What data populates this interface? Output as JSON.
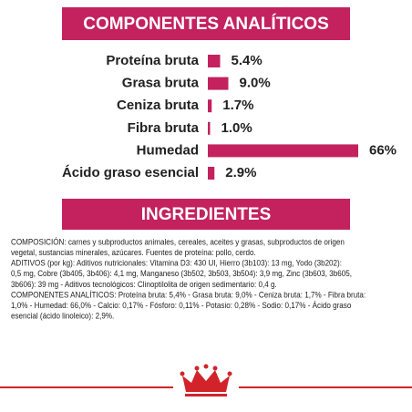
{
  "chart_data": {
    "type": "bar",
    "orientation": "horizontal",
    "title": "COMPONENTES ANALÍTICOS",
    "categories": [
      "Proteína bruta",
      "Grasa bruta",
      "Ceniza bruta",
      "Fibra bruta",
      "Humedad",
      "Ácido graso esencial"
    ],
    "values": [
      5.4,
      9.0,
      1.7,
      1.0,
      66,
      2.9
    ],
    "value_labels": [
      "5.4%",
      "9.0%",
      "1.7%",
      "1.0%",
      "66%",
      "2.9%"
    ],
    "color": "#c3225e"
  },
  "ingredients": {
    "title": "INGREDIENTES",
    "lines": [
      "COMPOSICIÓN: carnes y subproductos animales, cereales, aceites y grasas, subproductos de origen",
      "vegetal, sustancias minerales, azúcares. Fuentes de proteína: pollo, cerdo.",
      "ADITIVOS (por kg): Aditivos nutricionales: Vitamina D3: 430 UI, Hierro (3b103): 13 mg, Yodo (3b202):",
      "0,5 mg, Cobre (3b405, 3b406): 4,1 mg, Manganeso (3b502, 3b503, 3b504): 3,9 mg, Zinc (3b603, 3b605,",
      "3b606): 39 mg - Aditivos tecnológicos: Clinoptilolita de origen sedimentario: 0,4 g.",
      "COMPONENTES ANALÍTICOS: Proteína bruta: 5,4% - Grasa bruta: 9,0% - Ceniza bruta: 1,7% - Fibra bruta:",
      "1,0% - Humedad: 66,0% - Calcio: 0,17% - Fósforo: 0,11% - Potasio: 0,28% - Sodio: 0,17% - Ácido graso",
      "esencial (ácido linoleico): 2,9%."
    ]
  }
}
